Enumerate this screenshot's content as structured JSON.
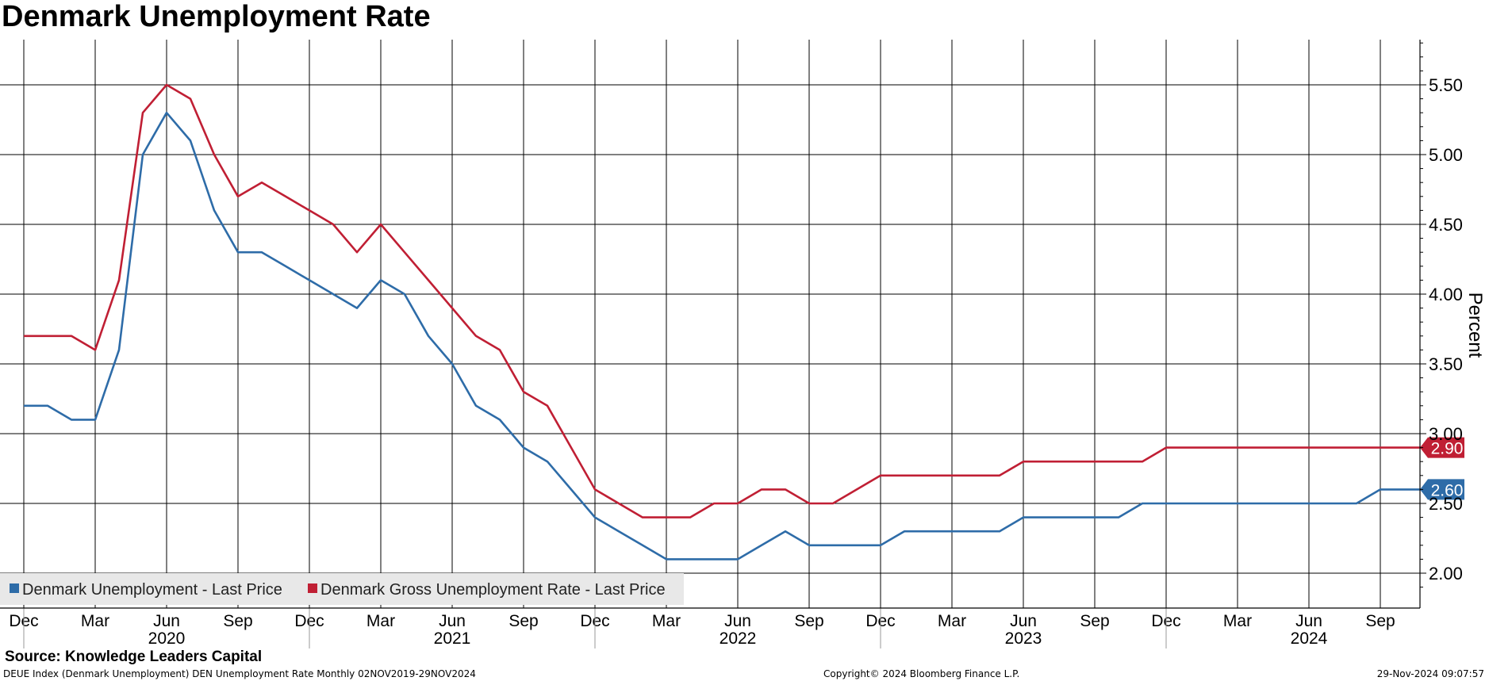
{
  "chart_data": {
    "type": "line",
    "title": "Denmark Unemployment Rate",
    "ylabel": "Percent",
    "ylim": [
      1.84,
      5.82
    ],
    "yticks": [
      "2.00",
      "2.50",
      "3.00",
      "3.50",
      "4.00",
      "4.50",
      "5.00",
      "5.50"
    ],
    "x_start": "Dec 2019",
    "month_ticks": [
      "Dec",
      "Mar",
      "Jun",
      "Sep",
      "Dec",
      "Mar",
      "Jun",
      "Sep",
      "Dec",
      "Mar",
      "Jun",
      "Sep",
      "Dec",
      "Mar",
      "Jun",
      "Sep",
      "Dec",
      "Mar",
      "Jun",
      "Sep"
    ],
    "year_labels": [
      "2020",
      "2021",
      "2022",
      "2023",
      "2024"
    ],
    "series": [
      {
        "name": "Denmark Unemployment - Last Price",
        "color": "#2e6ca8",
        "last_label": "2.60",
        "values": [
          3.2,
          3.2,
          3.1,
          3.1,
          3.6,
          5.0,
          5.3,
          5.1,
          4.6,
          4.3,
          4.3,
          4.2,
          4.1,
          4.0,
          3.9,
          4.1,
          4.0,
          3.7,
          3.5,
          3.2,
          3.1,
          2.9,
          2.8,
          2.6,
          2.4,
          2.3,
          2.2,
          2.1,
          2.1,
          2.1,
          2.1,
          2.2,
          2.3,
          2.2,
          2.2,
          2.2,
          2.2,
          2.3,
          2.3,
          2.3,
          2.3,
          2.3,
          2.4,
          2.4,
          2.4,
          2.4,
          2.4,
          2.5,
          2.5,
          2.5,
          2.5,
          2.5,
          2.5,
          2.5,
          2.5,
          2.5,
          2.5,
          2.6,
          2.6,
          2.6
        ]
      },
      {
        "name": "Denmark Gross Unemployment Rate - Last Price",
        "color": "#c01f34",
        "last_label": "2.90",
        "values": [
          3.7,
          3.7,
          3.7,
          3.6,
          4.1,
          5.3,
          5.5,
          5.4,
          5.0,
          4.7,
          4.8,
          4.7,
          4.6,
          4.5,
          4.3,
          4.5,
          4.3,
          4.1,
          3.9,
          3.7,
          3.6,
          3.3,
          3.2,
          2.9,
          2.6,
          2.5,
          2.4,
          2.4,
          2.4,
          2.5,
          2.5,
          2.6,
          2.6,
          2.5,
          2.5,
          2.6,
          2.7,
          2.7,
          2.7,
          2.7,
          2.7,
          2.7,
          2.8,
          2.8,
          2.8,
          2.8,
          2.8,
          2.8,
          2.9,
          2.9,
          2.9,
          2.9,
          2.9,
          2.9,
          2.9,
          2.9,
          2.9,
          2.9,
          2.9,
          2.9
        ]
      }
    ]
  },
  "source": "Source: Knowledge Leaders Capital",
  "footer": {
    "left": "DEUE Index (Denmark Unemployment) DEN Unemployment Rate  Monthly 02NOV2019-29NOV2024",
    "center": "Copyright© 2024 Bloomberg Finance L.P.",
    "right": "29-Nov-2024 09:07:57"
  }
}
